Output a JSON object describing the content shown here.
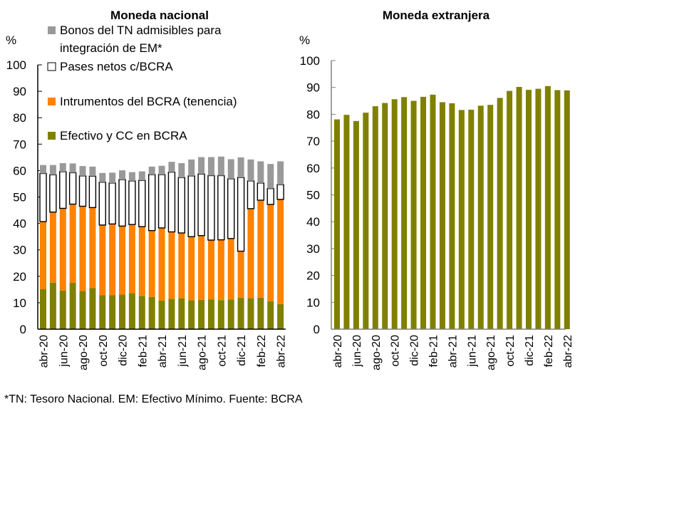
{
  "chart_data": [
    {
      "type": "bar",
      "stacked": true,
      "title": "Moneda nacional",
      "ylabel": "%",
      "xlabel": "",
      "ylim": [
        0,
        100
      ],
      "yticks": [
        0,
        10,
        20,
        30,
        40,
        50,
        60,
        70,
        80,
        90,
        100
      ],
      "grid": false,
      "legend_position": "top-left-inside",
      "categories": [
        "abr-20",
        "may-20",
        "jun-20",
        "jul-20",
        "ago-20",
        "sep-20",
        "oct-20",
        "nov-20",
        "dic-20",
        "ene-21",
        "feb-21",
        "mar-21",
        "abr-21",
        "may-21",
        "jun-21",
        "jul-21",
        "ago-21",
        "sep-21",
        "oct-21",
        "nov-21",
        "dic-21",
        "ene-22",
        "feb-22",
        "mar-22",
        "abr-22"
      ],
      "tick_labels": [
        "abr-20",
        "jun-20",
        "ago-20",
        "oct-20",
        "dic-20",
        "feb-21",
        "abr-21",
        "jun-21",
        "ago-21",
        "oct-21",
        "dic-21",
        "feb-22",
        "abr-22"
      ],
      "series": [
        {
          "name": "Efectivo y CC en BCRA",
          "color": "#808000",
          "values": [
            15.2,
            17.6,
            14.6,
            17.6,
            14.4,
            15.5,
            12.8,
            12.8,
            13.1,
            13.6,
            12.6,
            12.2,
            10.8,
            11.5,
            11.7,
            10.9,
            11.1,
            11.3,
            11.0,
            11.2,
            11.9,
            11.7,
            11.9,
            10.6,
            9.5
          ]
        },
        {
          "name": "Intrumentos del BCRA (tenencia)",
          "color": "#ff8300",
          "values": [
            25.5,
            26.7,
            31.1,
            29.7,
            32.1,
            30.5,
            26.6,
            27.0,
            25.9,
            26.0,
            26.2,
            25.1,
            27.5,
            25.3,
            24.7,
            24.1,
            24.3,
            22.4,
            22.8,
            23.1,
            17.6,
            33.9,
            36.9,
            36.6,
            39.6
          ]
        },
        {
          "name": "Pases netos c/BCRA",
          "color": "#ffffff",
          "values": [
            18.2,
            14.1,
            13.9,
            11.9,
            11.5,
            11.9,
            16.2,
            15.5,
            17.6,
            16.5,
            17.5,
            21.2,
            20.2,
            22.6,
            21.0,
            23.0,
            23.3,
            24.4,
            24.3,
            22.6,
            27.9,
            10.5,
            6.5,
            6.0,
            5.6
          ]
        },
        {
          "name": "Bonos del TN admisibles para integración de EM*",
          "color": "#999999",
          "values": [
            3.2,
            3.7,
            3.2,
            3.5,
            3.7,
            3.6,
            3.5,
            3.9,
            3.5,
            3.3,
            3.4,
            3.0,
            3.3,
            3.9,
            5.4,
            6.2,
            6.4,
            7.0,
            7.2,
            7.4,
            7.6,
            8.1,
            8.2,
            9.3,
            8.8
          ]
        }
      ],
      "legend": [
        {
          "label_lines": [
            "Bonos del TN admisibles para",
            "integración de EM*"
          ],
          "color": "#999999",
          "outlined": false
        },
        {
          "label_lines": [
            "Pases netos c/BCRA"
          ],
          "color": "#ffffff",
          "outlined": true
        },
        {
          "label_lines": [
            "Intrumentos del BCRA (tenencia)"
          ],
          "color": "#ff8300",
          "outlined": false
        },
        {
          "label_lines": [
            "Efectivo y CC en BCRA"
          ],
          "color": "#808000",
          "outlined": false
        }
      ]
    },
    {
      "type": "bar",
      "title": "Moneda extranjera",
      "ylabel": "%",
      "xlabel": "",
      "ylim": [
        0,
        100
      ],
      "yticks": [
        0,
        10,
        20,
        30,
        40,
        50,
        60,
        70,
        80,
        90,
        100
      ],
      "grid": false,
      "categories": [
        "abr-20",
        "may-20",
        "jun-20",
        "jul-20",
        "ago-20",
        "sep-20",
        "oct-20",
        "nov-20",
        "dic-20",
        "ene-21",
        "feb-21",
        "mar-21",
        "abr-21",
        "may-21",
        "jun-21",
        "jul-21",
        "ago-21",
        "sep-21",
        "oct-21",
        "nov-21",
        "dic-21",
        "ene-22",
        "feb-22",
        "mar-22",
        "abr-22"
      ],
      "tick_labels": [
        "abr-20",
        "jun-20",
        "ago-20",
        "oct-20",
        "dic-20",
        "feb-21",
        "abr-21",
        "jun-21",
        "ago-21",
        "oct-21",
        "dic-21",
        "feb-22",
        "abr-22"
      ],
      "series": [
        {
          "name": "Moneda extranjera",
          "color": "#808000",
          "values": [
            78.1,
            79.8,
            77.5,
            80.6,
            83.0,
            84.2,
            85.6,
            86.4,
            85.0,
            86.5,
            87.3,
            84.5,
            84.1,
            81.6,
            81.7,
            83.2,
            83.5,
            86.1,
            88.7,
            90.2,
            89.1,
            89.5,
            90.5,
            89.0,
            88.9
          ]
        }
      ]
    }
  ],
  "footnote": "*TN: Tesoro Nacional. EM: Efectivo Mínimo. Fuente: BCRA"
}
